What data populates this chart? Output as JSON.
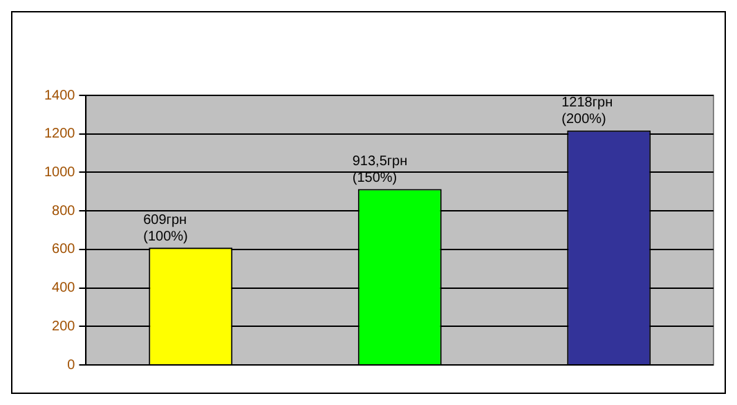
{
  "chart_data": {
    "type": "bar",
    "categories": [
      null,
      null,
      null
    ],
    "values": [
      609,
      913.5,
      1218
    ],
    "colors": [
      "#ffff00",
      "#00ff00",
      "#333399"
    ],
    "value_labels": [
      "609грн (100%)",
      "913,5грн (150%)",
      "1218грн (200%)"
    ],
    "ylim": [
      0,
      1400
    ],
    "yticks": [
      0,
      200,
      400,
      600,
      800,
      1000,
      1200,
      1400
    ],
    "grid": "y",
    "legend": false
  }
}
